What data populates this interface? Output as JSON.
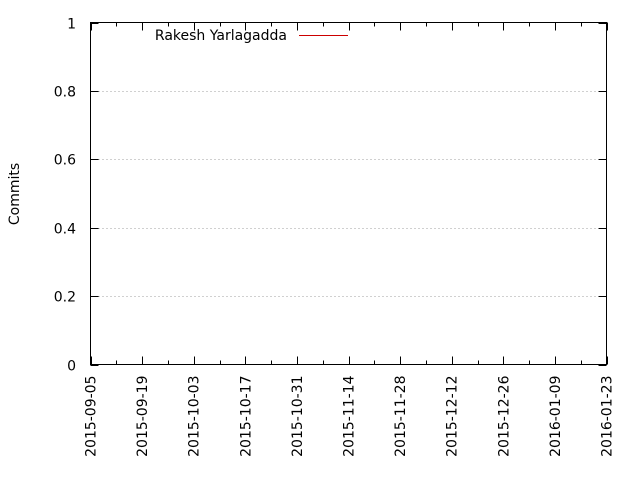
{
  "chart_data": {
    "type": "line",
    "title": "",
    "xlabel": "",
    "ylabel": "Commits",
    "x_type": "date",
    "xlim": [
      "2015-09-05",
      "2016-01-23"
    ],
    "ylim": [
      0,
      1
    ],
    "x_ticks": [
      "2015-09-05",
      "2015-09-19",
      "2015-10-03",
      "2015-10-17",
      "2015-10-31",
      "2015-11-14",
      "2015-11-28",
      "2015-12-12",
      "2015-12-26",
      "2016-01-09",
      "2016-01-23"
    ],
    "y_ticks": [
      "0",
      "0.2",
      "0.4",
      "0.6",
      "0.8",
      "1"
    ],
    "y_tick_values": [
      0,
      0.2,
      0.4,
      0.6,
      0.8,
      1
    ],
    "grid": "horizontal dotted",
    "legend_position": "top-left",
    "series": [
      {
        "name": "Rakesh Yarlagadda",
        "color": "#cc0000",
        "x": [],
        "y": []
      }
    ]
  },
  "colors": {
    "axis": "#000000",
    "grid": "#a0a0a0",
    "series": "#cc0000"
  }
}
